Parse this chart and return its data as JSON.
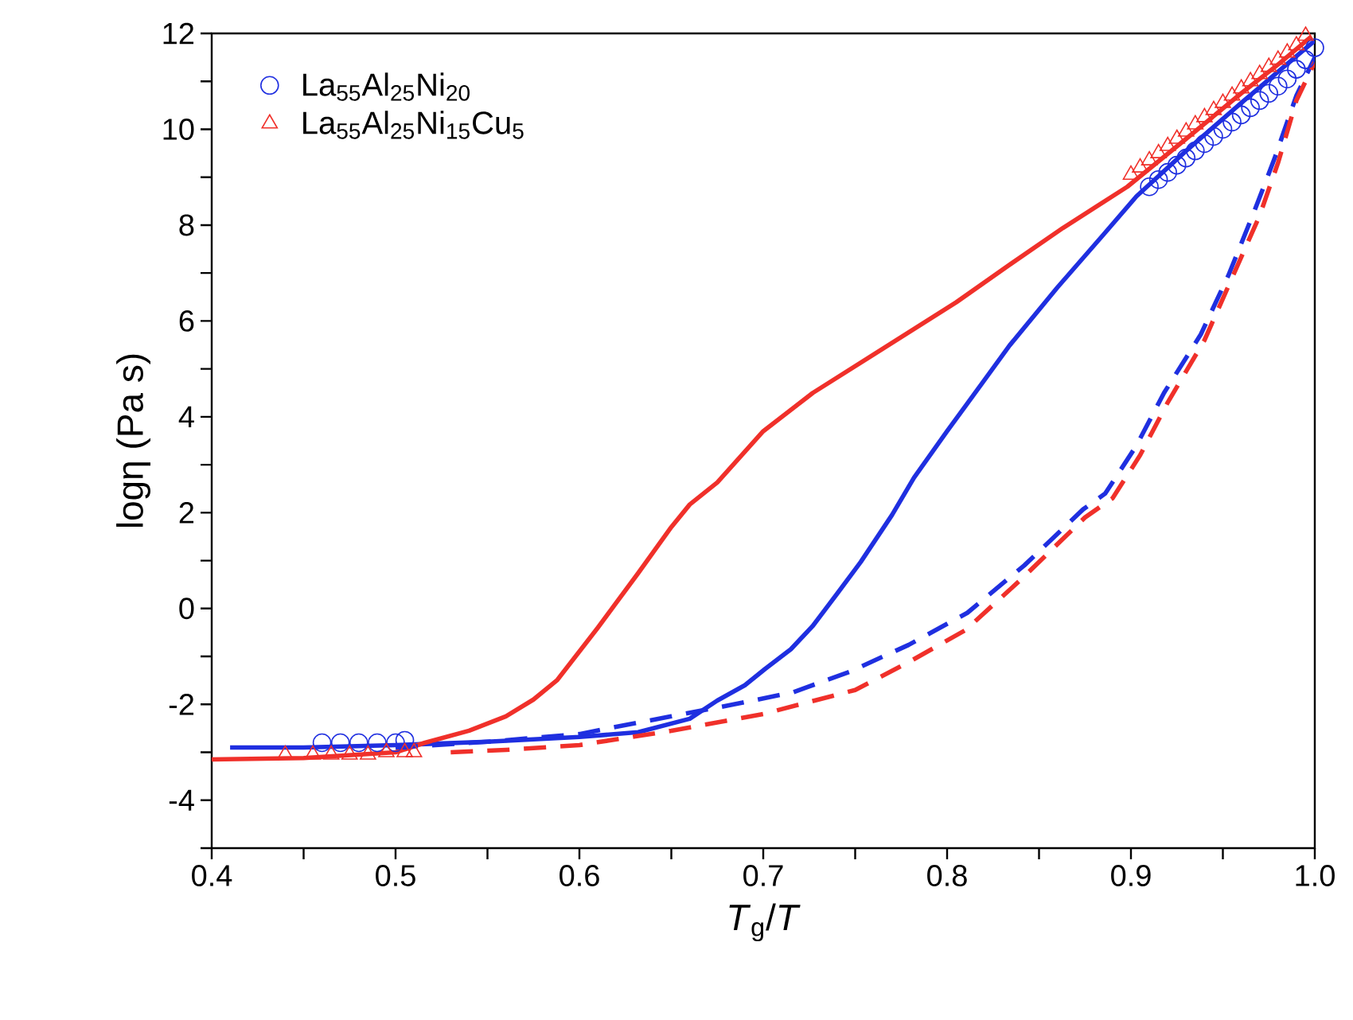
{
  "chart_data": {
    "type": "line",
    "xlabel": "*T*$_{g}$/*T*",
    "ylabel": "logη (Pa s)",
    "xlim": [
      0.4,
      1.0
    ],
    "ylim": [
      -5,
      12
    ],
    "xticks": [
      0.4,
      {
        "value": 0.45,
        "label": null
      },
      0.5,
      {
        "value": 0.55,
        "label": null
      },
      0.6,
      {
        "value": 0.65,
        "label": null
      },
      0.7,
      {
        "value": 0.75,
        "label": null
      },
      0.8,
      {
        "value": 0.85,
        "label": null
      },
      0.9,
      {
        "value": 0.95,
        "label": null
      },
      {
        "value": 1.0,
        "label": "1.0"
      }
    ],
    "yticks": [
      {
        "value": -5,
        "label": null
      },
      -4,
      {
        "value": -3,
        "label": null
      },
      -2,
      {
        "value": -1,
        "label": null
      },
      0,
      {
        "value": 1,
        "label": null
      },
      2,
      {
        "value": 3,
        "label": null
      },
      4,
      {
        "value": 5,
        "label": null
      },
      6,
      {
        "value": 7,
        "label": null
      },
      8,
      {
        "value": 9,
        "label": null
      },
      10,
      {
        "value": 11,
        "label": null
      },
      12
    ],
    "legend": "top left",
    "grid": false,
    "series": [
      {
        "name": "La$_{55}$Al$_{25}$Ni$_{20}$",
        "type": "scatter",
        "marker": "circle",
        "color": "#1f2fe0",
        "x": [
          0.46,
          0.47,
          0.48,
          0.49,
          0.5,
          0.505,
          0.91,
          0.915,
          0.92,
          0.925,
          0.93,
          0.935,
          0.94,
          0.945,
          0.95,
          0.955,
          0.96,
          0.965,
          0.97,
          0.975,
          0.98,
          0.985,
          0.99,
          0.995,
          1.0
        ],
        "values": [
          -2.8,
          -2.8,
          -2.8,
          -2.8,
          -2.8,
          -2.75,
          8.8,
          8.95,
          9.1,
          9.25,
          9.4,
          9.55,
          9.7,
          9.85,
          10.0,
          10.15,
          10.3,
          10.45,
          10.6,
          10.75,
          10.9,
          11.05,
          11.25,
          11.45,
          11.7
        ]
      },
      {
        "name": "La$_{55}$Al$_{25}$Ni$_{15}$Cu$_{5}$",
        "type": "scatter",
        "marker": "triangle",
        "color": "#f0302a",
        "x": [
          0.44,
          0.455,
          0.465,
          0.475,
          0.485,
          0.495,
          0.505,
          0.51,
          0.9,
          0.905,
          0.91,
          0.915,
          0.92,
          0.925,
          0.93,
          0.935,
          0.94,
          0.945,
          0.95,
          0.955,
          0.96,
          0.965,
          0.97,
          0.975,
          0.98,
          0.985,
          0.99,
          0.995
        ],
        "values": [
          -3.05,
          -3.05,
          -3.05,
          -3.05,
          -3.05,
          -3.0,
          -3.0,
          -3.0,
          9.05,
          9.2,
          9.35,
          9.5,
          9.65,
          9.8,
          9.95,
          10.1,
          10.25,
          10.4,
          10.55,
          10.7,
          10.85,
          11.0,
          11.15,
          11.3,
          11.45,
          11.6,
          11.75,
          11.95
        ]
      },
      {
        "line_style": "solid",
        "color": "#1f2fe0",
        "x": [
          0.41,
          0.45,
          0.5,
          0.55,
          0.6,
          0.632,
          0.66,
          0.675,
          0.69,
          0.701,
          0.715,
          0.727,
          0.74,
          0.753,
          0.77,
          0.782,
          0.8,
          0.82,
          0.834,
          0.86,
          0.885,
          0.903,
          0.93,
          0.96,
          0.98,
          1.0
        ],
        "values": [
          -2.9,
          -2.9,
          -2.85,
          -2.78,
          -2.68,
          -2.58,
          -2.3,
          -1.92,
          -1.6,
          -1.26,
          -0.85,
          -0.36,
          0.3,
          0.97,
          1.95,
          2.73,
          3.7,
          4.75,
          5.49,
          6.7,
          7.8,
          8.6,
          9.55,
          10.55,
          11.2,
          11.85
        ]
      },
      {
        "line_style": "solid",
        "color": "#f0302a",
        "x": [
          0.4,
          0.45,
          0.5,
          0.516,
          0.54,
          0.56,
          0.575,
          0.588,
          0.61,
          0.632,
          0.65,
          0.66,
          0.675,
          0.7,
          0.727,
          0.76,
          0.805,
          0.835,
          0.863,
          0.898,
          0.93,
          0.96,
          0.98,
          0.998
        ],
        "values": [
          -3.15,
          -3.12,
          -3.0,
          -2.8,
          -2.55,
          -2.25,
          -1.9,
          -1.49,
          -0.4,
          0.74,
          1.7,
          2.17,
          2.63,
          3.7,
          4.5,
          5.3,
          6.39,
          7.2,
          7.94,
          8.8,
          9.8,
          10.75,
          11.35,
          11.93
        ]
      },
      {
        "line_style": "dashed",
        "color": "#1f2fe0",
        "x": [
          0.5,
          0.55,
          0.6,
          0.617,
          0.65,
          0.684,
          0.716,
          0.747,
          0.779,
          0.811,
          0.842,
          0.874,
          0.886,
          0.903,
          0.918,
          0.938,
          0.953,
          0.967,
          0.978,
          0.99,
          1.0
        ],
        "values": [
          -2.9,
          -2.78,
          -2.62,
          -2.49,
          -2.25,
          -2.0,
          -1.75,
          -1.32,
          -0.76,
          -0.09,
          0.9,
          2.07,
          2.4,
          3.4,
          4.5,
          5.72,
          6.95,
          8.28,
          9.38,
          10.7,
          11.5
        ]
      },
      {
        "line_style": "dashed",
        "color": "#f0302a",
        "x": [
          0.53,
          0.56,
          0.6,
          0.65,
          0.7,
          0.75,
          0.78,
          0.81,
          0.84,
          0.875,
          0.89,
          0.905,
          0.92,
          0.94,
          0.955,
          0.97,
          0.98,
          0.99,
          1.0
        ],
        "values": [
          -3.0,
          -2.95,
          -2.85,
          -2.55,
          -2.2,
          -1.7,
          -1.1,
          -0.45,
          0.6,
          1.9,
          2.3,
          3.2,
          4.3,
          5.6,
          6.9,
          8.2,
          9.3,
          10.6,
          11.4
        ]
      }
    ]
  }
}
